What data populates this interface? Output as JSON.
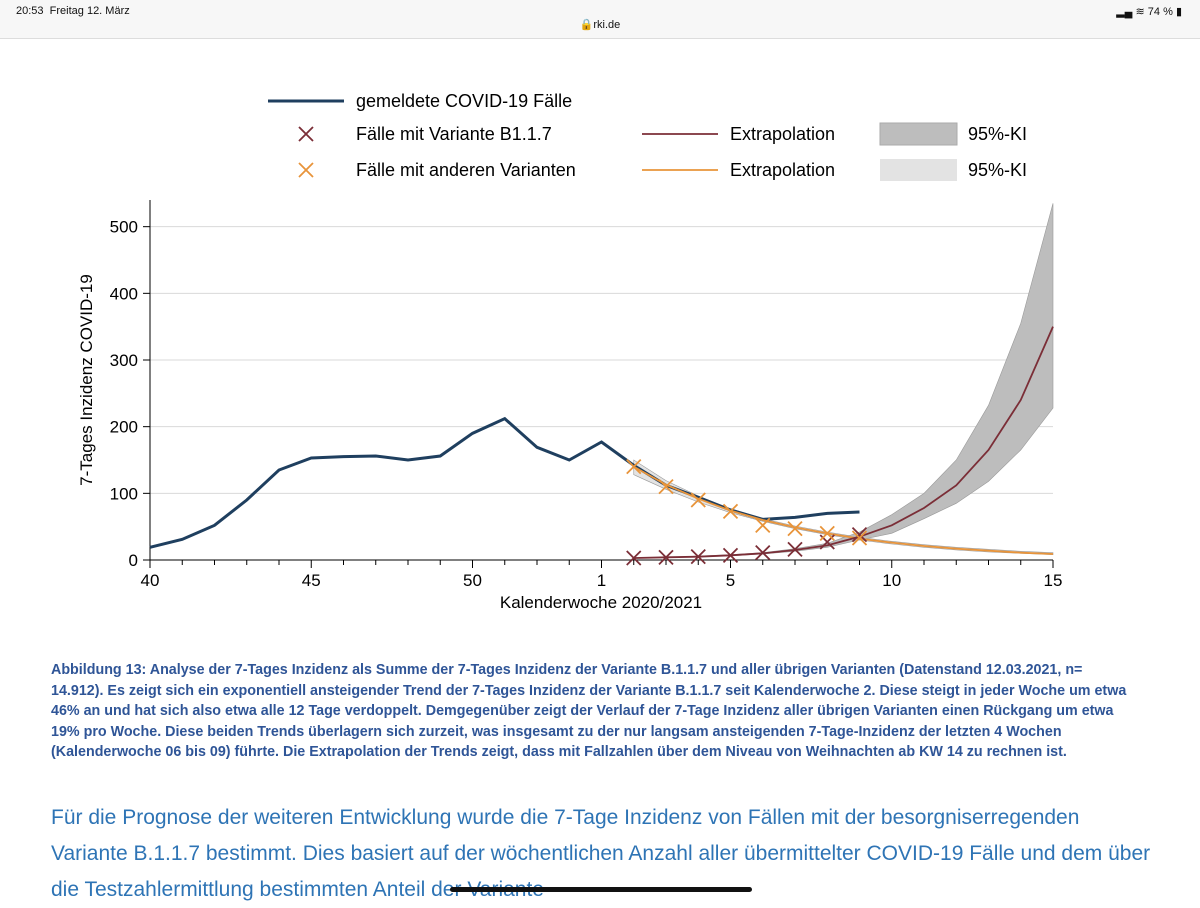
{
  "status": {
    "time": "20:53",
    "date": "Freitag 12. März",
    "url": "rki.de",
    "battery": "74 %"
  },
  "chart_data": {
    "type": "line",
    "ylabel": "7-Tages Inzidenz COVID-19",
    "xlabel": "Kalenderwoche 2020/2021",
    "ylim": [
      0,
      540
    ],
    "yticks": [
      0,
      100,
      200,
      300,
      400,
      500
    ],
    "xticks": [
      {
        "label": "40",
        "idx": 0
      },
      {
        "label": "45",
        "idx": 5
      },
      {
        "label": "50",
        "idx": 10
      },
      {
        "label": "1",
        "idx": 14
      },
      {
        "label": "5",
        "idx": 18
      },
      {
        "label": "10",
        "idx": 23
      },
      {
        "label": "15",
        "idx": 28
      }
    ],
    "weeks": [
      "40",
      "41",
      "42",
      "43",
      "44",
      "45",
      "46",
      "47",
      "48",
      "49",
      "50",
      "51",
      "52",
      "53",
      "1",
      "2",
      "3",
      "4",
      "5",
      "6",
      "7",
      "8",
      "9",
      "10",
      "11",
      "12",
      "13",
      "14",
      "15"
    ],
    "legend": {
      "reported": "gemeldete COVID-19 Fälle",
      "b117": "Fälle mit Variante B1.1.7",
      "other": "Fälle mit anderen Varianten",
      "extrap": "Extrapolation",
      "ci": "95%-KI"
    },
    "colors": {
      "reported": "#1f3f5f",
      "b117": "#7b2e37",
      "other": "#e8943a",
      "ci_dark": "#bdbdbd",
      "ci_light": "#e3e3e3"
    },
    "series": [
      {
        "name": "gemeldete COVID-19 Fälle",
        "start": 0,
        "values": [
          19,
          31,
          52,
          90,
          135,
          153,
          155,
          156,
          150,
          156,
          190,
          212,
          169,
          150,
          177,
          142,
          112,
          94,
          75,
          61,
          64,
          70,
          72
        ]
      },
      {
        "name": "Fälle mit Variante B1.1.7",
        "start": 15,
        "values": [
          3,
          4,
          5,
          7,
          11,
          16,
          27,
          38
        ]
      },
      {
        "name": "Fälle mit anderen Varianten",
        "start": 15,
        "values": [
          140,
          110,
          90,
          73,
          52,
          47,
          40,
          33
        ]
      },
      {
        "name": "Extrapolation B1.1.7",
        "start": 15,
        "values": [
          3,
          4,
          5,
          7,
          10,
          15,
          22,
          35,
          52,
          78,
          112,
          165,
          240,
          350
        ],
        "ci_lower": [
          3,
          4,
          5,
          6,
          9,
          13,
          19,
          30,
          40,
          62,
          85,
          118,
          165,
          228
        ],
        "ci_upper": [
          3,
          4,
          6,
          8,
          11,
          17,
          25,
          42,
          68,
          100,
          150,
          232,
          355,
          535
        ]
      },
      {
        "name": "Extrapolation andere",
        "start": 15,
        "values": [
          140,
          113,
          92,
          74,
          60,
          49,
          40,
          32,
          26,
          21,
          17,
          14,
          11,
          9
        ],
        "ci_lower": [
          128,
          106,
          87,
          71,
          58,
          47,
          38,
          30,
          24,
          19,
          15,
          12,
          10,
          8
        ],
        "ci_upper": [
          150,
          119,
          96,
          77,
          62,
          51,
          42,
          34,
          28,
          23,
          19,
          16,
          13,
          11
        ]
      }
    ]
  },
  "caption": "Abbildung 13: Analyse der 7-Tages Inzidenz als Summe der 7-Tages Inzidenz der Variante B.1.1.7 und aller übrigen Varianten (Datenstand 12.03.2021, n= 14.912).  Es zeigt sich ein exponentiell ansteigender Trend der 7-Tages Inzidenz der Variante B.1.1.7 seit Kalenderwoche 2. Diese steigt in jeder Woche um etwa 46% an und hat sich also etwa alle 12 Tage verdoppelt. Demgegenüber zeigt der Verlauf der 7-Tage Inzidenz aller übrigen Varianten einen Rückgang um etwa 19% pro Woche. Diese beiden Trends überlagern sich zurzeit, was insgesamt zu der nur langsam ansteigenden 7-Tage-Inzidenz der letzten 4 Wochen (Kalenderwoche 06 bis 09) führte. Die Extrapolation der Trends zeigt, dass mit Fallzahlen über dem Niveau von Weihnachten ab KW 14 zu rechnen ist.",
  "body": "Für die Prognose der weiteren Entwicklung wurde die 7-Tage Inzidenz von Fällen mit der besorgniserregenden Variante B.1.1.7 bestimmt. Dies basiert auf der wöchentlichen Anzahl aller übermittelter COVID-19 Fälle und dem über die Testzahlermittlung bestimmten Anteil der Variante"
}
